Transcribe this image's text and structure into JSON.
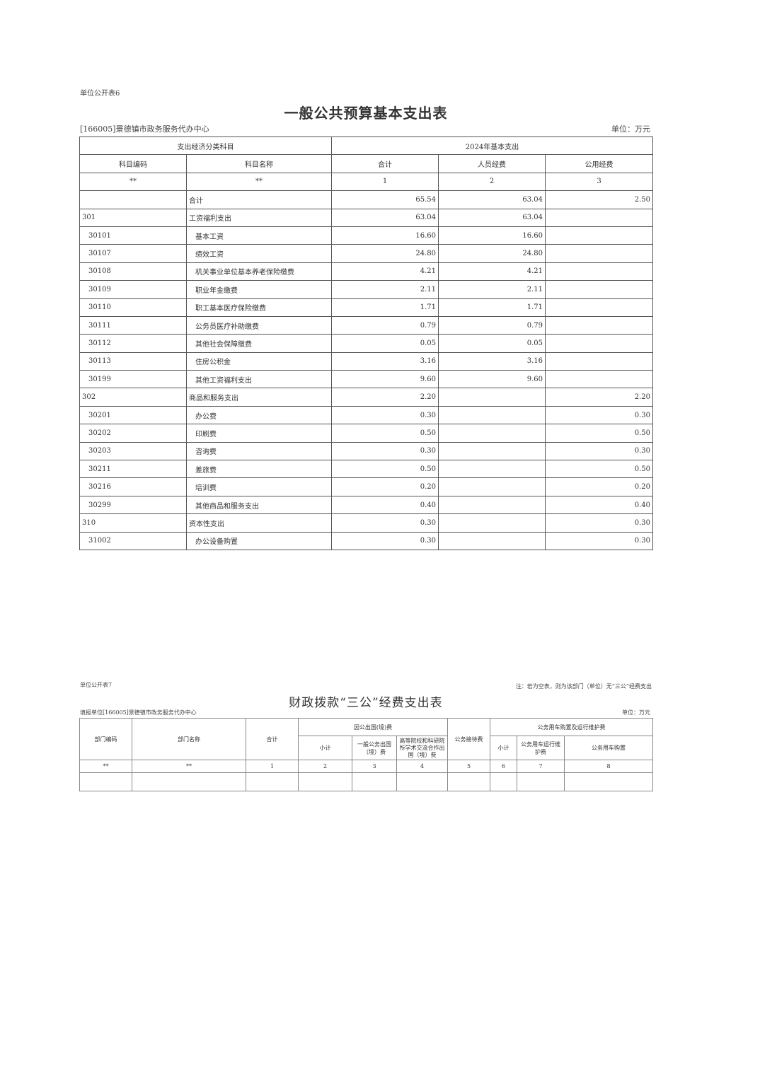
{
  "table1": {
    "label": "单位公开表6",
    "title": "一般公共预算基本支出表",
    "unit_org": "[166005]景德镇市政务服务代办中心",
    "unit": "单位：万元",
    "group_left": "支出经济分类科目",
    "group_right": "2024年基本支出",
    "headers": [
      "科目编码",
      "科目名称",
      "合计",
      "人员经费",
      "公用经费"
    ],
    "index_row": [
      "**",
      "**",
      "1",
      "2",
      "3"
    ],
    "rows": [
      [
        "",
        "合计",
        "65.54",
        "63.04",
        "2.50"
      ],
      [
        "301",
        "工资福利支出",
        "63.04",
        "63.04",
        ""
      ],
      [
        "30101",
        "基本工资",
        "16.60",
        "16.60",
        ""
      ],
      [
        "30107",
        "绩效工资",
        "24.80",
        "24.80",
        ""
      ],
      [
        "30108",
        "机关事业单位基本养老保险缴费",
        "4.21",
        "4.21",
        ""
      ],
      [
        "30109",
        "职业年金缴费",
        "2.11",
        "2.11",
        ""
      ],
      [
        "30110",
        "职工基本医疗保险缴费",
        "1.71",
        "1.71",
        ""
      ],
      [
        "30111",
        "公务员医疗补助缴费",
        "0.79",
        "0.79",
        ""
      ],
      [
        "30112",
        "其他社会保障缴费",
        "0.05",
        "0.05",
        ""
      ],
      [
        "30113",
        "住房公积金",
        "3.16",
        "3.16",
        ""
      ],
      [
        "30199",
        "其他工资福利支出",
        "9.60",
        "9.60",
        ""
      ],
      [
        "302",
        "商品和服务支出",
        "2.20",
        "",
        "2.20"
      ],
      [
        "30201",
        "办公费",
        "0.30",
        "",
        "0.30"
      ],
      [
        "30202",
        "印刷费",
        "0.50",
        "",
        "0.50"
      ],
      [
        "30203",
        "咨询费",
        "0.30",
        "",
        "0.30"
      ],
      [
        "30211",
        "差旅费",
        "0.50",
        "",
        "0.50"
      ],
      [
        "30216",
        "培训费",
        "0.20",
        "",
        "0.20"
      ],
      [
        "30299",
        "其他商品和服务支出",
        "0.40",
        "",
        "0.40"
      ],
      [
        "310",
        "资本性支出",
        "0.30",
        "",
        "0.30"
      ],
      [
        "31002",
        "办公设备购置",
        "0.30",
        "",
        "0.30"
      ]
    ]
  },
  "table2": {
    "label": "单位公开表7",
    "note": "注：若为空表，则为该部门（单位）无“三公”经费支出",
    "title": "财政拨款“三公”经费支出表",
    "unit_org": "填报单位[166005]景德镇市政务服务代办中心",
    "unit": "单位：万元",
    "h_code": "部门编码",
    "h_name": "部门名称",
    "h_total": "合计",
    "h_abroad": "因公出国(境)费",
    "h_abroad_sub": "小计",
    "h_abroad_general": "一般公务出国（境）费",
    "h_abroad_academic": "高等院校和科研院所学术交流合作出国（境）费",
    "h_reception": "公务接待费",
    "h_car": "公务用车购置及运行维护费",
    "h_car_sub": "小计",
    "h_car_run": "公务用车运行维护费",
    "h_car_buy": "公务用车购置",
    "index_row": [
      "**",
      "**",
      "1",
      "2",
      "3",
      "4",
      "5",
      "6",
      "7",
      "8"
    ]
  }
}
